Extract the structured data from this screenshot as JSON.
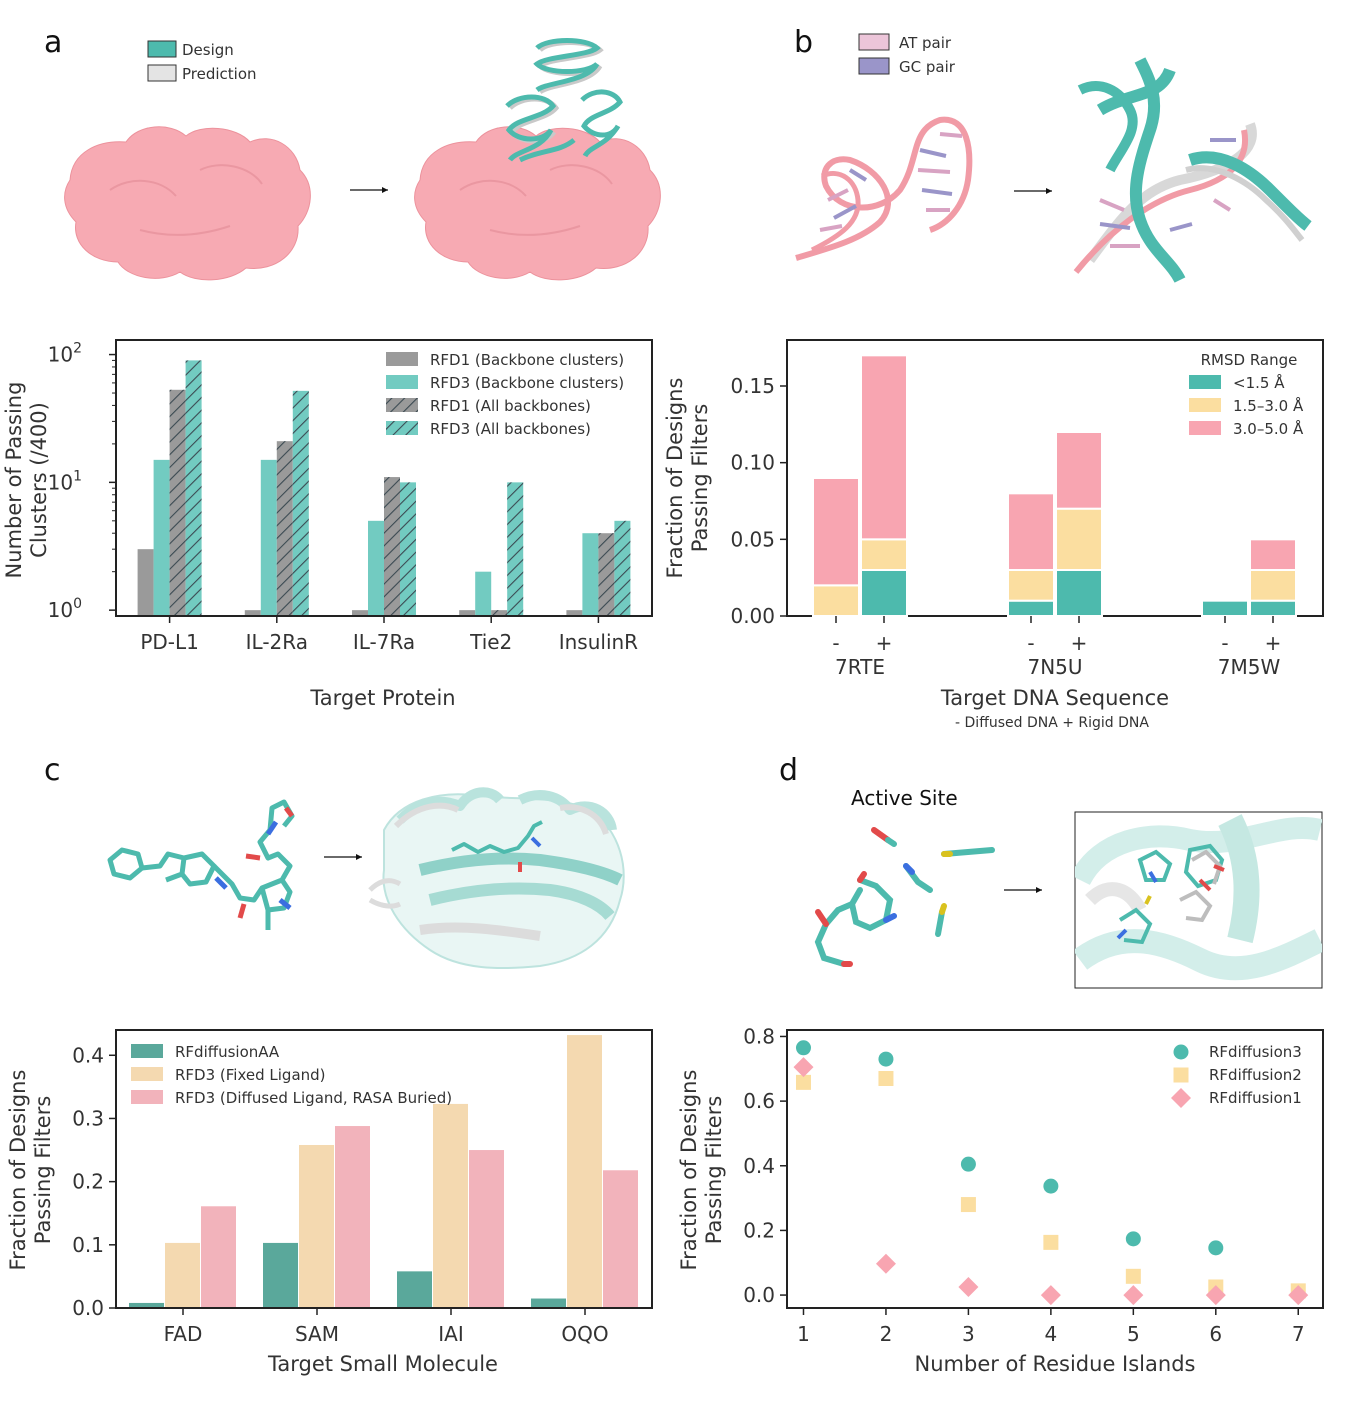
{
  "panels": {
    "a": {
      "label": "a",
      "legend": [
        "Design",
        "Prediction"
      ]
    },
    "b": {
      "label": "b",
      "legend": [
        "AT pair",
        "GC pair"
      ]
    },
    "c": {
      "label": "c"
    },
    "d": {
      "label": "d",
      "active_site_title": "Active Site"
    }
  },
  "colors": {
    "teal": "#6cc9bf",
    "teal_dark": "#4aab9f",
    "gray": "#9a9a9a",
    "pink": "#f6a6b2",
    "pink_struct": "#f7aab3",
    "cream": "#fbdea0",
    "cream_c": "#f4d9b0",
    "pink_c": "#f2b3bb",
    "teal_c": "#5aa89b",
    "purple": "#9a95c9",
    "mauve": "#d8a3c3"
  },
  "chart_data": [
    {
      "id": "a",
      "type": "bar",
      "title": "",
      "xlabel": "Target Protein",
      "ylabel": "Number of Passing Clusters (/400)",
      "ylabel_lines": [
        "Number of Passing",
        "Clusters (/400)"
      ],
      "yscale": "log",
      "ylim": [
        0.9,
        130
      ],
      "yticks": [
        {
          "label": "10",
          "sup": "0",
          "value": 1
        },
        {
          "label": "10",
          "sup": "1",
          "value": 10
        },
        {
          "label": "10",
          "sup": "2",
          "value": 100
        }
      ],
      "categories": [
        "PD-L1",
        "IL-2Ra",
        "IL-7Ra",
        "Tie2",
        "InsulinR"
      ],
      "series": [
        {
          "name": "RFD1 (Backbone clusters)",
          "values": [
            3,
            1,
            1,
            1,
            1
          ],
          "color": "#9a9a9a",
          "hatch": false
        },
        {
          "name": "RFD3 (Backbone clusters)",
          "values": [
            15,
            15,
            5,
            2,
            4
          ],
          "color": "#72cbc1",
          "hatch": false
        },
        {
          "name": "RFD1 (All backbones)",
          "values": [
            53,
            21,
            11,
            1,
            4
          ],
          "color": "#9a9a9a",
          "hatch": true
        },
        {
          "name": "RFD3 (All backbones)",
          "values": [
            90,
            52,
            10,
            10,
            5
          ],
          "color": "#72cbc1",
          "hatch": true
        }
      ],
      "legend_position": "top-right"
    },
    {
      "id": "b",
      "type": "bar",
      "stacked": true,
      "xlabel": "Target DNA Sequence",
      "xlabel_note": "- Diffused DNA + Rigid DNA",
      "ylabel": "Fraction of Designs Passing Filters",
      "ylabel_lines": [
        "Fraction of Designs",
        "Passing Filters"
      ],
      "ylim": [
        0,
        0.18
      ],
      "yticks": [
        "0.00",
        "0.05",
        "0.10",
        "0.15"
      ],
      "groups": [
        "7RTE",
        "7N5U",
        "7M5W"
      ],
      "bar_labels": [
        "-",
        "+"
      ],
      "legend_title": "RMSD Range",
      "series": [
        {
          "name": "<1.5 Å",
          "color": "#4dbaad",
          "values": [
            0.0,
            0.03,
            0.01,
            0.03,
            0.01,
            0.01
          ]
        },
        {
          "name": "1.5–3.0 Å",
          "color": "#fbdea0",
          "values": [
            0.02,
            0.02,
            0.02,
            0.04,
            0.0,
            0.02
          ]
        },
        {
          "name": "3.0–5.0 Å",
          "color": "#f8a5b1",
          "values": [
            0.07,
            0.12,
            0.05,
            0.05,
            0.0,
            0.02
          ]
        }
      ],
      "legend_position": "top-right"
    },
    {
      "id": "c",
      "type": "bar",
      "xlabel": "Target Small Molecule",
      "ylabel": "Fraction of Designs Passing Filters",
      "ylabel_lines": [
        "Fraction of Designs",
        "Passing Filters"
      ],
      "ylim": [
        0,
        0.44
      ],
      "yticks": [
        "0.0",
        "0.1",
        "0.2",
        "0.3",
        "0.4"
      ],
      "categories": [
        "FAD",
        "SAM",
        "IAI",
        "OQO"
      ],
      "series": [
        {
          "name": "RFdiffusionAA",
          "values": [
            0.008,
            0.103,
            0.058,
            0.015
          ],
          "color": "#5aa89b"
        },
        {
          "name": "RFD3 (Fixed Ligand)",
          "values": [
            0.103,
            0.258,
            0.323,
            0.432
          ],
          "color": "#f4d9b0"
        },
        {
          "name": "RFD3 (Diffused Ligand, RASA Buried)",
          "values": [
            0.161,
            0.288,
            0.25,
            0.218
          ],
          "color": "#f2b3bb"
        }
      ],
      "legend_position": "top-left"
    },
    {
      "id": "d",
      "type": "scatter",
      "xlabel": "Number of Residue Islands",
      "ylabel": "Fraction of Designs Passing Filters",
      "ylabel_lines": [
        "Fraction of Designs",
        "Passing Filters"
      ],
      "xlim": [
        0.8,
        7.3
      ],
      "ylim": [
        -0.04,
        0.82
      ],
      "xticks": [
        "1",
        "2",
        "3",
        "4",
        "5",
        "6",
        "7"
      ],
      "yticks": [
        "0.0",
        "0.2",
        "0.4",
        "0.6",
        "0.8"
      ],
      "series": [
        {
          "name": "RFdiffusion3",
          "marker": "circle",
          "color": "#4dbaad",
          "x": [
            1,
            2,
            3,
            4,
            5,
            6
          ],
          "y": [
            0.765,
            0.73,
            0.405,
            0.337,
            0.174,
            0.146
          ]
        },
        {
          "name": "RFdiffusion2",
          "marker": "square",
          "color": "#fbdea0",
          "x": [
            1,
            2,
            3,
            4,
            5,
            6,
            7
          ],
          "y": [
            0.658,
            0.67,
            0.28,
            0.163,
            0.058,
            0.025,
            0.013
          ]
        },
        {
          "name": "RFdiffusion1",
          "marker": "diamond",
          "color": "#f8a5b1",
          "x": [
            1,
            2,
            3,
            4,
            5,
            6,
            7
          ],
          "y": [
            0.705,
            0.097,
            0.025,
            0.0,
            0.0,
            0.0,
            0.0
          ]
        }
      ],
      "legend_position": "top-right"
    }
  ]
}
